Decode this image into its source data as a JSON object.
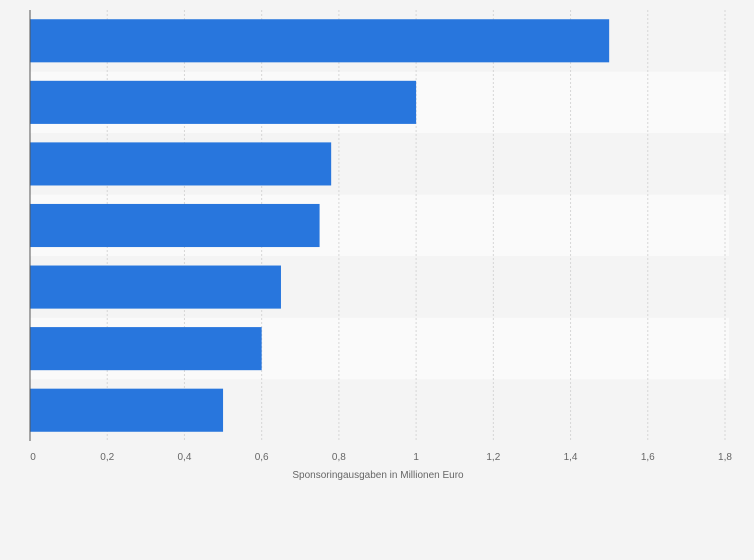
{
  "chart_data": {
    "type": "bar",
    "orientation": "horizontal",
    "categories": [
      "",
      "",
      "",
      "",
      "",
      "",
      ""
    ],
    "values": [
      1.5,
      1.0,
      0.78,
      0.75,
      0.65,
      0.6,
      0.5
    ],
    "title": "",
    "xlabel": "Sponsoringausgaben in Millionen Euro",
    "ylabel": "",
    "xlim": [
      0,
      1.8
    ],
    "xticks": [
      "0",
      "0,2",
      "0,4",
      "0,6",
      "0,8",
      "1",
      "1,2",
      "1,4",
      "1,6",
      "1,8"
    ],
    "grid": "vertical",
    "legend": "none",
    "bar_color": "#2876dd",
    "band_colors": [
      "#f4f4f4",
      "#fafafa"
    ]
  }
}
